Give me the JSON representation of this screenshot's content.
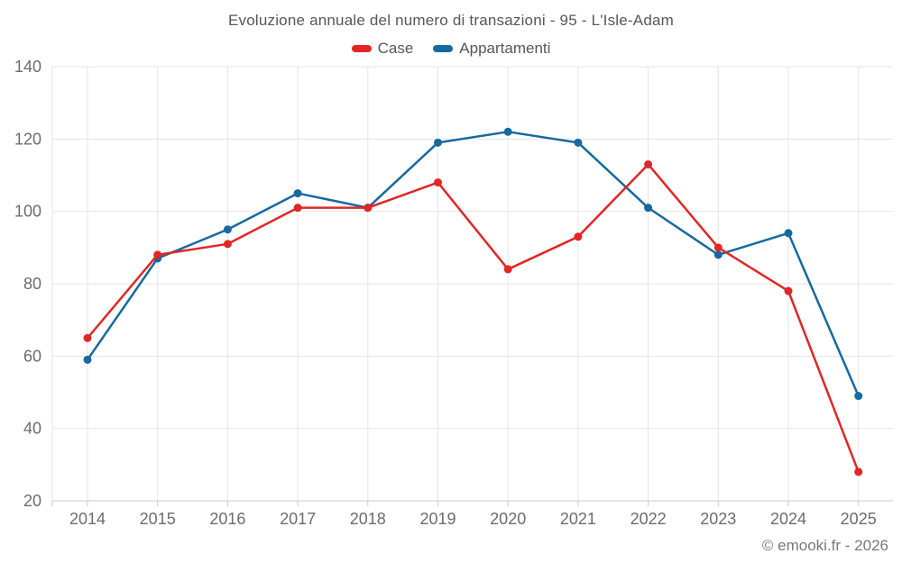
{
  "chart_data": {
    "type": "line",
    "title": "Evoluzione annuale del numero di transazioni - 95 - L'Isle-Adam",
    "categories": [
      "2014",
      "2015",
      "2016",
      "2017",
      "2018",
      "2019",
      "2020",
      "2021",
      "2022",
      "2023",
      "2024",
      "2025"
    ],
    "series": [
      {
        "name": "Case",
        "color": "#e12626",
        "values": [
          65,
          88,
          91,
          101,
          101,
          108,
          84,
          93,
          113,
          90,
          78,
          28
        ]
      },
      {
        "name": "Appartamenti",
        "color": "#17699f",
        "values": [
          59,
          87,
          95,
          105,
          101,
          119,
          122,
          119,
          101,
          88,
          94,
          49
        ]
      }
    ],
    "xlabel": "",
    "ylabel": "",
    "ylim": [
      20,
      140
    ],
    "y_tick_step": 20,
    "grid": true,
    "legend_position": "top",
    "draw_order": [
      "Appartamenti",
      "Case"
    ]
  },
  "footer": {
    "copyright": "© emooki.fr - 2026"
  },
  "style": {
    "grid_color": "#e6e6e6",
    "axis_color": "#c9cbcd",
    "tick_label_color": "#6a6c6e",
    "title_color": "#55575a"
  }
}
